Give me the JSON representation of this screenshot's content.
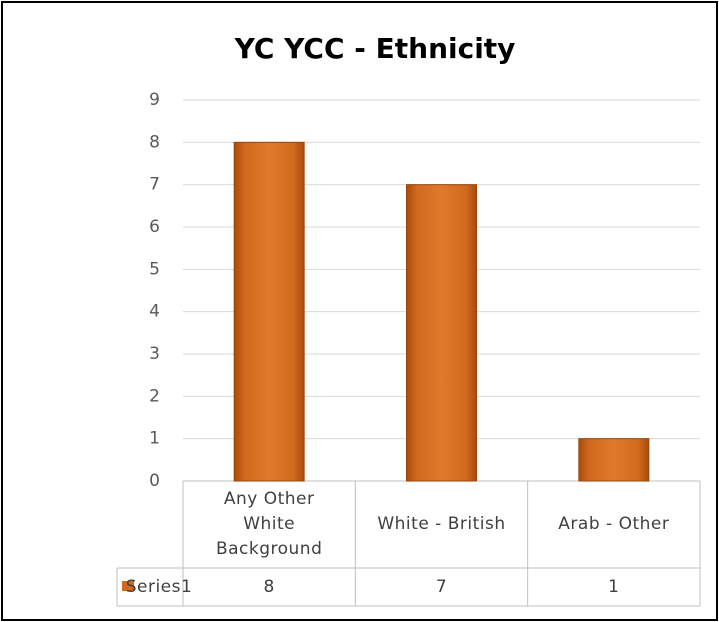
{
  "chart_data": {
    "type": "bar",
    "title": "YC YCC - Ethnicity",
    "categories": [
      "Any Other White Background",
      "White - British",
      "Arab - Other"
    ],
    "series": [
      {
        "name": "Series1",
        "color": "#d2691e",
        "values": [
          8,
          7,
          1
        ]
      }
    ],
    "ylim": [
      0,
      9
    ],
    "yticks": [
      0,
      1,
      2,
      3,
      4,
      5,
      6,
      7,
      8,
      9
    ],
    "grid": true,
    "data_table": true
  }
}
